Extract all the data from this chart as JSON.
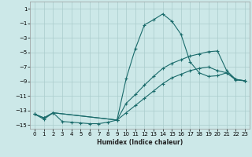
{
  "xlabel": "Humidex (Indice chaleur)",
  "bg_color": "#cce8e8",
  "line_color": "#1a6b6b",
  "grid_color": "#aacccc",
  "xlim": [
    -0.5,
    23.5
  ],
  "ylim": [
    -15.5,
    2.0
  ],
  "xticks": [
    0,
    1,
    2,
    3,
    4,
    5,
    6,
    7,
    8,
    9,
    10,
    11,
    12,
    13,
    14,
    15,
    16,
    17,
    18,
    19,
    20,
    21,
    22,
    23
  ],
  "yticks": [
    1,
    -1,
    -3,
    -5,
    -7,
    -9,
    -11,
    -13,
    -15
  ],
  "line1_x": [
    0,
    1,
    2,
    3,
    4,
    5,
    6,
    7,
    8,
    9,
    10,
    11,
    12,
    13,
    14,
    15,
    16,
    17,
    18,
    19,
    20,
    21,
    22,
    23
  ],
  "line1_y": [
    -13.5,
    -14.2,
    -13.3,
    -14.5,
    -14.6,
    -14.7,
    -14.8,
    -14.8,
    -14.6,
    -14.3,
    -8.6,
    -4.5,
    -1.2,
    -0.5,
    0.3,
    -0.7,
    -2.5,
    -6.3,
    -7.8,
    -8.3,
    -8.2,
    -7.8,
    -8.8,
    -8.9
  ],
  "line2_x": [
    0,
    1,
    2,
    9,
    10,
    11,
    12,
    13,
    14,
    15,
    16,
    17,
    18,
    19,
    20,
    21,
    22,
    23
  ],
  "line2_y": [
    -13.5,
    -14.0,
    -13.3,
    -14.3,
    -12.0,
    -10.8,
    -9.5,
    -8.3,
    -7.2,
    -6.5,
    -6.0,
    -5.5,
    -5.2,
    -4.9,
    -4.8,
    -7.5,
    -8.7,
    -8.9
  ],
  "line3_x": [
    0,
    1,
    2,
    9,
    10,
    11,
    12,
    13,
    14,
    15,
    16,
    17,
    18,
    19,
    20,
    21,
    22,
    23
  ],
  "line3_y": [
    -13.5,
    -14.0,
    -13.3,
    -14.3,
    -13.3,
    -12.3,
    -11.3,
    -10.3,
    -9.3,
    -8.5,
    -8.0,
    -7.5,
    -7.2,
    -7.0,
    -7.5,
    -7.8,
    -8.7,
    -8.9
  ]
}
